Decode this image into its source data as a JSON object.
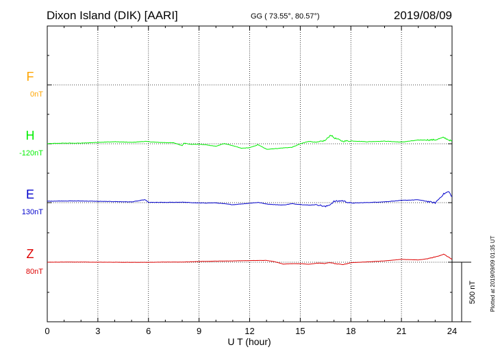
{
  "header": {
    "station": "Dixon Island (DIK)  [AARI]",
    "coords": "GG ( 73.55°,  80.57°)",
    "date": "2019/08/09"
  },
  "plotted_note": "Plotted at 2019/09/09 01:35 UT",
  "chart_data": {
    "type": "line",
    "xlabel": "U T (hour)",
    "xlim": [
      0,
      24
    ],
    "xticks": [
      0,
      3,
      6,
      9,
      12,
      15,
      18,
      21,
      24
    ],
    "scale_bar_label": "500 nT",
    "grid": true,
    "series": [
      {
        "name": "F",
        "baseline_label": "0nT",
        "color": "#ffa500",
        "x": [],
        "y": []
      },
      {
        "name": "H",
        "baseline_label": "-120nT",
        "color": "#00ee00",
        "x": [
          0,
          1,
          2,
          3,
          4,
          5,
          5.8,
          6.5,
          7.5,
          8,
          8.1,
          8.5,
          9,
          9.5,
          10,
          10.5,
          11,
          11.5,
          12,
          12.5,
          13,
          13.5,
          14,
          14.5,
          15,
          15.5,
          16,
          16.5,
          16.8,
          17,
          17.5,
          18,
          19,
          20,
          21,
          22,
          23,
          23.5,
          24
        ],
        "y": [
          -119,
          -115,
          -115,
          -108,
          -103,
          -108,
          -100,
          -108,
          -112,
          -135,
          -114,
          -125,
          -124,
          -130,
          -141,
          -118,
          -136,
          -158,
          -153,
          -128,
          -166,
          -161,
          -155,
          -150,
          -121,
          -99,
          -109,
          -91,
          -45,
          -70,
          -98,
          -96,
          -103,
          -98,
          -106,
          -89,
          -87,
          -68,
          -99
        ]
      },
      {
        "name": "E",
        "baseline_label": "130nT",
        "color": "#0000cc",
        "x": [
          0,
          1,
          2,
          3,
          4,
          5,
          5.8,
          6,
          7,
          8,
          9,
          10,
          11,
          12,
          12.5,
          13,
          13.5,
          14,
          14.5,
          15,
          15.5,
          16,
          16.5,
          16.8,
          17,
          17.5,
          18,
          19,
          20,
          21,
          22,
          22.5,
          23,
          23.5,
          23.8,
          24
        ],
        "y": [
          142,
          144,
          144,
          141,
          139,
          136,
          155,
          132,
          132,
          134,
          127,
          128,
          113,
          125,
          132,
          119,
          113,
          110,
          121,
          115,
          109,
          114,
          96,
          117,
          140,
          146,
          126,
          131,
          137,
          149,
          154,
          141,
          128,
          203,
          223,
          179
        ]
      },
      {
        "name": "Z",
        "baseline_label": "80nT",
        "color": "#dd0000",
        "x": [
          0,
          1,
          2,
          3,
          4,
          5,
          6,
          7,
          8,
          9,
          10,
          11,
          12,
          13,
          13.5,
          14,
          14.5,
          15,
          15.5,
          16,
          16.5,
          16.8,
          17,
          17.5,
          18,
          19,
          20,
          21,
          22,
          22.5,
          23,
          23.5,
          24
        ],
        "y": [
          80,
          81,
          81,
          80,
          80,
          79,
          79,
          81,
          81,
          86,
          89,
          91,
          94,
          95,
          84,
          64,
          68,
          68,
          63,
          72,
          70,
          77,
          69,
          59,
          76,
          83,
          91,
          104,
          99,
          108,
          124,
          147,
          105
        ]
      }
    ]
  }
}
